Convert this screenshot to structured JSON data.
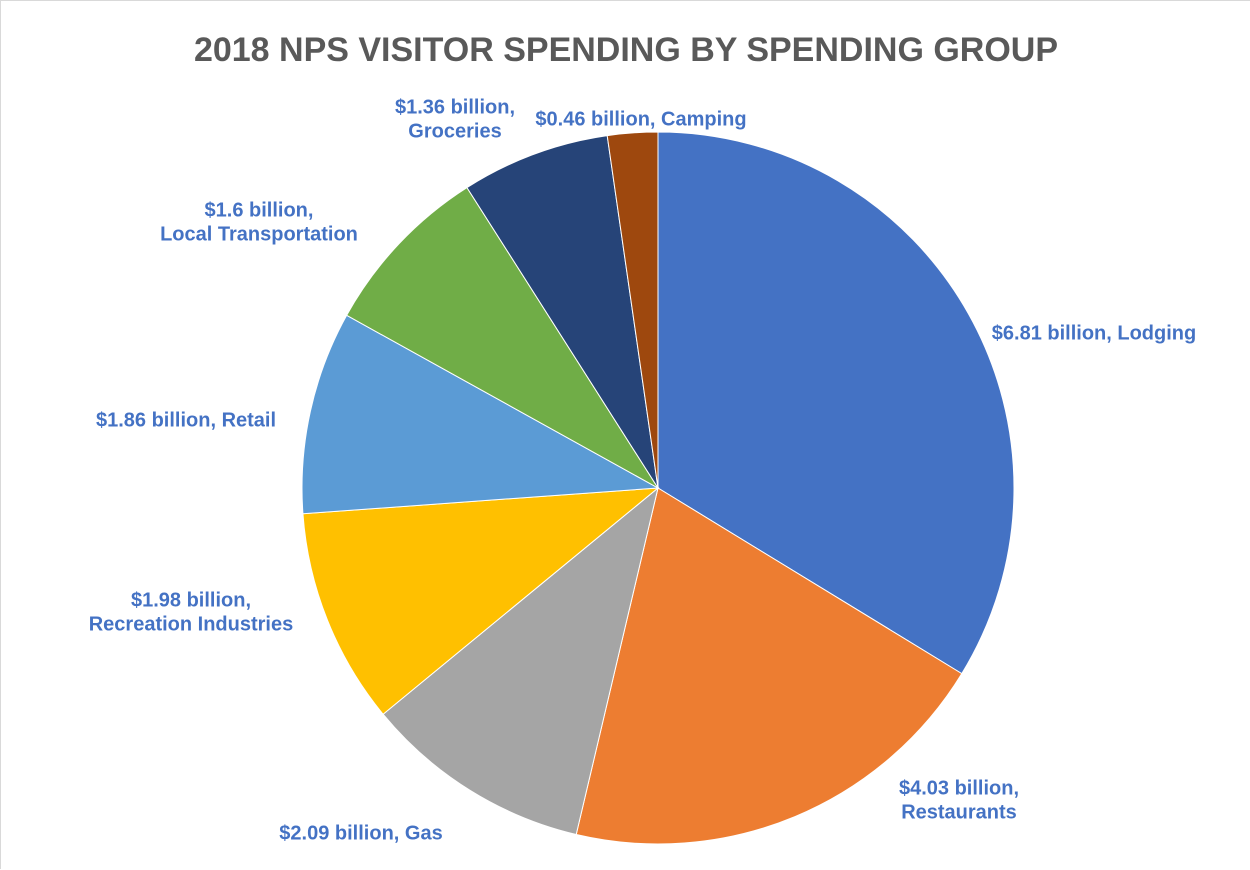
{
  "chart_data": {
    "type": "pie",
    "title": "2018 NPS VISITOR SPENDING BY SPENDING GROUP",
    "slices": [
      {
        "name": "Lodging",
        "value": 6.81,
        "label": [
          "$6.81 billion, Lodging"
        ],
        "color": "#4472c4"
      },
      {
        "name": "Restaurants",
        "value": 4.03,
        "label": [
          "$4.03 billion,",
          "Restaurants"
        ],
        "color": "#ed7d31"
      },
      {
        "name": "Gas",
        "value": 2.09,
        "label": [
          "$2.09 billion, Gas"
        ],
        "color": "#a5a5a5"
      },
      {
        "name": "Recreation Industries",
        "value": 1.98,
        "label": [
          "$1.98 billion,",
          "Recreation Industries"
        ],
        "color": "#ffc000"
      },
      {
        "name": "Retail",
        "value": 1.86,
        "label": [
          "$1.86 billion, Retail"
        ],
        "color": "#5b9bd5"
      },
      {
        "name": "Local Transportation",
        "value": 1.6,
        "label": [
          "$1.6 billion,",
          "Local Transportation"
        ],
        "color": "#70ad47"
      },
      {
        "name": "Groceries",
        "value": 1.36,
        "label": [
          "$1.36 billion,",
          "Groceries"
        ],
        "color": "#264478"
      },
      {
        "name": "Camping",
        "value": 0.46,
        "label": [
          "$0.46 billion, Camping"
        ],
        "color": "#9e480e"
      }
    ],
    "label_color": "#4472c4",
    "legend": "none"
  }
}
